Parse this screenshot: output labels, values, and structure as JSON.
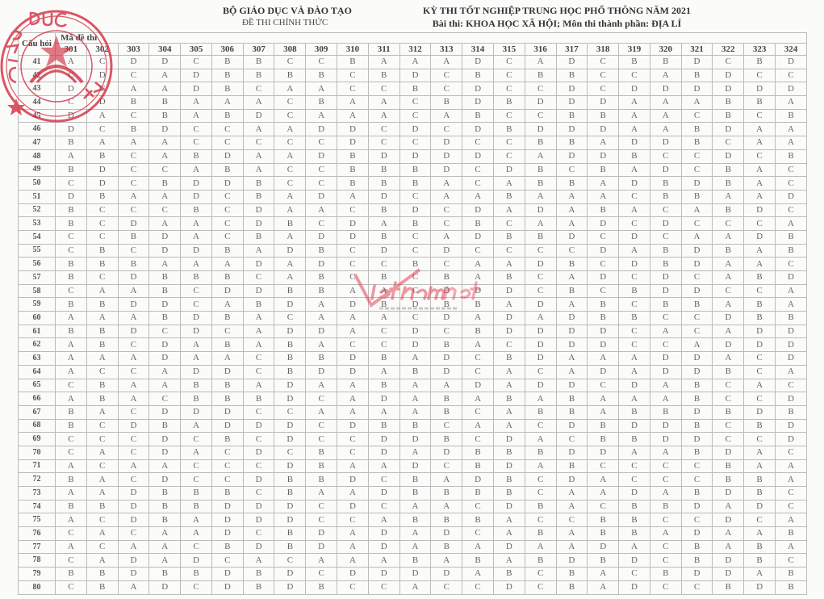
{
  "header": {
    "ministry": "BỘ GIÁO DỤC VÀ ĐÀO TẠO",
    "official": "ĐỀ THI CHÍNH THỨC",
    "exam_title": "KỲ THI TỐT NGHIỆP TRUNG HỌC PHỔ THÔNG NĂM 2021",
    "exam_subtitle": "Bài thi:  KHOA HỌC XÃ HỘI; Môn thi thành phần: ĐỊA LÍ"
  },
  "stamp_text": "BỘ GIÁO DỤC VÀ ĐÀO TẠO",
  "watermark_text": "vietnamnet VIETNAMNET.VN",
  "colors": {
    "stamp": "#d2283c",
    "watermark": "#e0344a"
  },
  "table": {
    "question_header": "Câu hỏi",
    "codes_header": "Mã đề thi",
    "codes": [
      "301",
      "302",
      "303",
      "304",
      "305",
      "306",
      "307",
      "308",
      "309",
      "310",
      "311",
      "312",
      "313",
      "314",
      "315",
      "316",
      "317",
      "318",
      "319",
      "320",
      "321",
      "322",
      "323",
      "324"
    ],
    "rows": [
      {
        "q": "41",
        "a": "ACDDCBBCCBAAADCADCBBDCBD"
      },
      {
        "q": "42",
        "a": "CDCADBBBBCBDCBCBBCCABDCC"
      },
      {
        "q": "43",
        "a": "DCAADBCAACCBCDCCDCDDDDDD"
      },
      {
        "q": "44",
        "a": "CDBBAAACBAACBDBDDDAAABBA"
      },
      {
        "q": "45",
        "a": "DACBABDCAAACABCCBBAACBCB"
      },
      {
        "q": "46",
        "a": "DCBDCCAADDCDCDBDDDAABDAA"
      },
      {
        "q": "47",
        "a": "BAAACCCCCDCCDCCBBADDBCAA"
      },
      {
        "q": "48",
        "a": "ABCABDAADBDDDDCADDBCCDCB"
      },
      {
        "q": "49",
        "a": "BDCCABACCBBBDCDBCBADCBAC"
      },
      {
        "q": "50",
        "a": "CDCBDDBCCBBBACABBADBDBAC"
      },
      {
        "q": "51",
        "a": "DBAADCBADADCAABAAACBBAAD"
      },
      {
        "q": "52",
        "a": "BCCCBCDAACBDCDADABACABDC"
      },
      {
        "q": "53",
        "a": "BCDAACDBCDABCBCAADCDCCCA"
      },
      {
        "q": "54",
        "a": "CCBDACBADDBCADBBDCDCAADB"
      },
      {
        "q": "55",
        "a": "CBCDDBADBCDCDCCCCDABDBAB"
      },
      {
        "q": "56",
        "a": "BBBAAADADCCBCAADBCDBDAAC"
      },
      {
        "q": "57",
        "a": "BCDBBBCABCBCBABCADCDCABD"
      },
      {
        "q": "58",
        "a": "CAABCDDBBAACDDDCBCBDDCCA"
      },
      {
        "q": "59",
        "a": "BBDDCABDADBDBBADABCBBABA"
      },
      {
        "q": "60",
        "a": "AAABDBACAAACDADADBBCCDBB"
      },
      {
        "q": "61",
        "a": "BBDCDCADDACDCBDDDDCACADD"
      },
      {
        "q": "62",
        "a": "ABCDABABACCDBACDDDCCADDD"
      },
      {
        "q": "63",
        "a": "AAADAACBBDBADCBDAAADDACD"
      },
      {
        "q": "64",
        "a": "ACCADDCBDDABDCACADADDBCA"
      },
      {
        "q": "65",
        "a": "CBAABBADAABAADADDCDABCAC"
      },
      {
        "q": "66",
        "a": "ABACBBBDCADABABABAAABCCD"
      },
      {
        "q": "67",
        "a": "BACDDDCCAAAABCABBABBDBDB"
      },
      {
        "q": "68",
        "a": "BCDBADDDCDBBCAACDBDDBCBD"
      },
      {
        "q": "69",
        "a": "CCCDCBCDCCDDBCDACBBDDCCD"
      },
      {
        "q": "70",
        "a": "CACDACDCBCDADBBBDDAABDAC"
      },
      {
        "q": "71",
        "a": "ACAACCCDBAADCBDABCCCCBAA"
      },
      {
        "q": "72",
        "a": "BACDCCDBBDCBADBCDACCCBBA"
      },
      {
        "q": "73",
        "a": "AADBBBCBAADBBBBCAADABDBC"
      },
      {
        "q": "74",
        "a": "BBDBBDDDCDCAACDBACBBDADC"
      },
      {
        "q": "75",
        "a": "ACDBADDDCCABBBACCBBCCDCA"
      },
      {
        "q": "76",
        "a": "CACAADCBDADADCABABBADAAB"
      },
      {
        "q": "77",
        "a": "ACAACBDBDADABADAADACBABA"
      },
      {
        "q": "78",
        "a": "CADADCACAAABABABDBDCBDBC"
      },
      {
        "q": "79",
        "a": "BBDBBDBDCDDDDABCBACBDDAB"
      },
      {
        "q": "80",
        "a": "CBADCDBDBCCACCDCBADCCBDB"
      }
    ]
  }
}
